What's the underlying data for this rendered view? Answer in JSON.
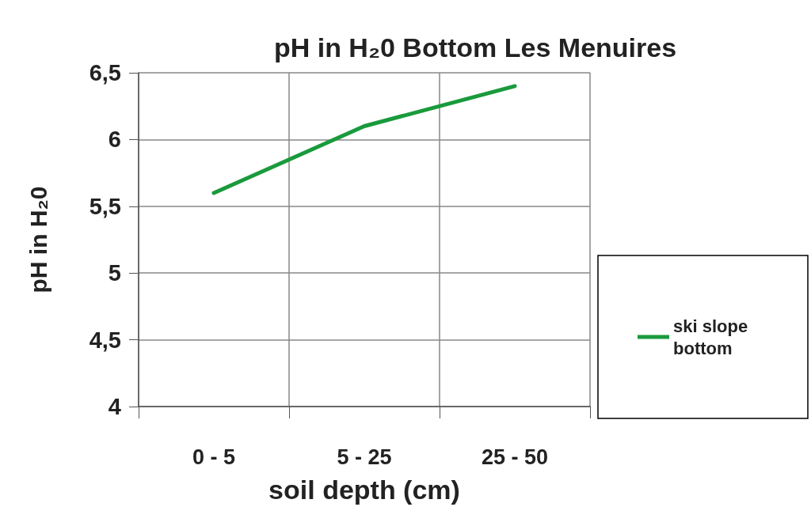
{
  "chart_data": {
    "type": "line",
    "title": "pH in H₂0 Bottom Les Menuires",
    "xlabel": "soil depth (cm)",
    "ylabel": "pH in H₂0",
    "categories": [
      "0 - 5",
      "5 - 25",
      "25 - 50"
    ],
    "series": [
      {
        "name": "ski slope bottom",
        "color": "#1a9a3c",
        "values": [
          5.6,
          6.1,
          6.4
        ]
      }
    ],
    "ylim": [
      4,
      6.5
    ],
    "yticks": [
      4,
      {
        "value": 4.5,
        "label": "4,5"
      },
      5,
      {
        "value": 5.5,
        "label": "5,5"
      },
      6,
      {
        "value": 6.5,
        "label": "6,5"
      }
    ],
    "grid": true,
    "legend": "right",
    "marker": "none",
    "line_style": "solid"
  }
}
